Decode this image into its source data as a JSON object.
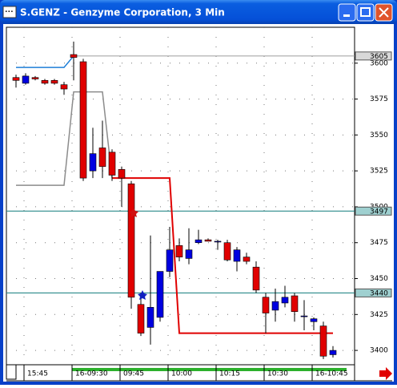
{
  "window": {
    "title": "S.GENZ - Genzyme Corporation, 3 Min"
  },
  "chart_data": {
    "type": "candlestick",
    "categories": [
      null,
      "15:45",
      null,
      null,
      null,
      null,
      "16-09:30",
      null,
      null,
      null,
      null,
      "09:45",
      null,
      null,
      null,
      null,
      "10:00",
      null,
      null,
      null,
      null,
      "10:15",
      null,
      null,
      null,
      null,
      "10:30",
      null,
      null,
      null,
      null,
      "16-10:45",
      null,
      null
    ],
    "open": [
      3590,
      3586,
      3590,
      3588,
      3588,
      3585,
      3606,
      3601,
      3525,
      3541,
      3538,
      3526,
      3516,
      3432,
      3416,
      3423,
      3455,
      3473,
      3464,
      3475,
      3477,
      3476,
      3475,
      3462,
      3465,
      3458,
      3437,
      3428,
      3433,
      3438,
      3424,
      3420,
      3417,
      3397
    ],
    "high": [
      3592,
      3593,
      3591,
      3589,
      3589,
      3587,
      3615,
      3603,
      3555,
      3560,
      3540,
      3528,
      3518,
      3440,
      3480,
      3455,
      3486,
      3478,
      3485,
      3484,
      3478,
      3477,
      3477,
      3472,
      3468,
      3462,
      3440,
      3443,
      3445,
      3440,
      3435,
      3423,
      3420,
      3403
    ],
    "low": [
      3583,
      3585,
      3588,
      3585,
      3585,
      3578,
      3588,
      3518,
      3520,
      3520,
      3518,
      3500,
      3429,
      3410,
      3404,
      3420,
      3451,
      3462,
      3460,
      3474,
      3476,
      3470,
      3462,
      3455,
      3460,
      3440,
      3412,
      3420,
      3430,
      3420,
      3414,
      3414,
      3394,
      3395
    ],
    "close": [
      3588,
      3591,
      3589,
      3586,
      3586,
      3582,
      3604,
      3520,
      3537,
      3528,
      3522,
      3520,
      3437,
      3412,
      3430,
      3455,
      3470,
      3465,
      3470,
      3477,
      3476,
      3476,
      3463,
      3470,
      3462,
      3442,
      3426,
      3434,
      3437,
      3427,
      3424,
      3422,
      3396,
      3400
    ],
    "up_color": "#0000e0",
    "down_color": "#e00000",
    "series": [
      {
        "color": "#1e7fd8",
        "values": [
          3597,
          3597,
          3597,
          3597,
          3597,
          3597,
          3605,
          null,
          null,
          null,
          null,
          null,
          null,
          null,
          null,
          null,
          null,
          null,
          null,
          null,
          null,
          null,
          null,
          null,
          null,
          null,
          null,
          null,
          null,
          null,
          null,
          null,
          null,
          null
        ]
      },
      {
        "color": "#8c8c8c",
        "values": [
          3515,
          3515,
          3515,
          3515,
          3515,
          3515,
          3580,
          3580,
          3580,
          3580,
          3520,
          null,
          null,
          null,
          null,
          null,
          null,
          null,
          null,
          null,
          null,
          null,
          null,
          null,
          null,
          null,
          null,
          null,
          null,
          null,
          null,
          null,
          null,
          null
        ]
      },
      {
        "color": "#e00000",
        "values": [
          null,
          null,
          null,
          null,
          null,
          null,
          null,
          null,
          null,
          null,
          3520,
          3520,
          3520,
          3520,
          3520,
          3520,
          3520,
          3412,
          3412,
          3412,
          3412,
          3412,
          3412,
          3412,
          3412,
          3412,
          3412,
          3412,
          3412,
          3412,
          3412,
          3412,
          3412,
          3412
        ]
      }
    ],
    "hlines": [
      {
        "value": 3605,
        "color": "#a8a8a8"
      },
      {
        "value": 3497,
        "color": "#2a8a8a"
      },
      {
        "value": 3440,
        "color": "#2a8a8a"
      }
    ],
    "ylim": [
      3390,
      3625
    ],
    "yticks": [
      3400,
      3425,
      3450,
      3475,
      3500,
      3525,
      3550,
      3575,
      3600
    ],
    "grid": true
  }
}
